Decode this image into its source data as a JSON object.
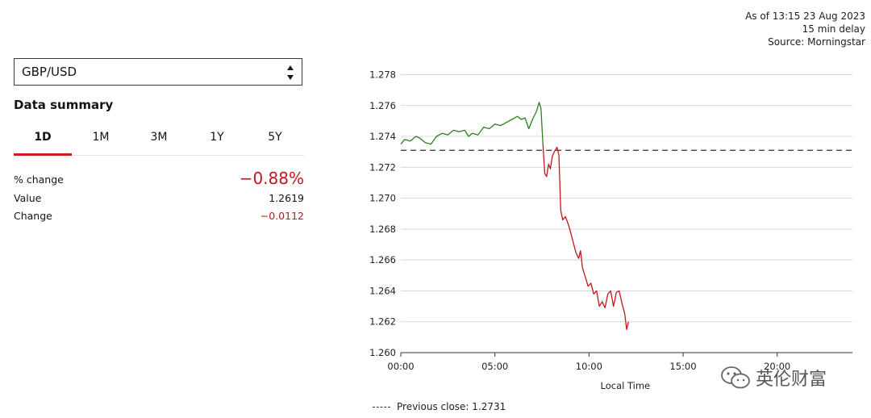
{
  "meta": {
    "as_of": "As of 13:15 23 Aug 2023",
    "delay": "15 min delay",
    "source": "Source: Morningstar"
  },
  "selector": {
    "value": "GBP/USD"
  },
  "summary": {
    "title": "Data summary",
    "tabs": [
      {
        "label": "1D",
        "active": true
      },
      {
        "label": "1M",
        "active": false
      },
      {
        "label": "3M",
        "active": false
      },
      {
        "label": "1Y",
        "active": false
      },
      {
        "label": "5Y",
        "active": false
      }
    ],
    "rows": [
      {
        "label": "% change",
        "value": "−0.88%"
      },
      {
        "label": "Value",
        "value": "1.2619"
      },
      {
        "label": "Change",
        "value": "−0.0112"
      }
    ]
  },
  "colors": {
    "up": "#2e7d1e",
    "down": "#c4161c",
    "accent": "#d11a1a"
  },
  "watermark": {
    "text": "英伦财富",
    "icon": "wechat-icon"
  },
  "chart_data": {
    "type": "line",
    "xlabel": "Local Time",
    "ylabel": "",
    "x_ticks": [
      "00:00",
      "05:00",
      "10:00",
      "15:00",
      "20:00"
    ],
    "x_range_hours": [
      0,
      24
    ],
    "y_ticks": [
      "1.278",
      "1.276",
      "1.274",
      "1.272",
      "1.270",
      "1.268",
      "1.266",
      "1.264",
      "1.262",
      "1.260"
    ],
    "ylim": [
      1.26,
      1.2786
    ],
    "grid": true,
    "previous_close": 1.2731,
    "legend": "Previous close: 1.2731",
    "series": [
      {
        "color": "#2e7d1e",
        "points": [
          [
            0.0,
            1.2735
          ],
          [
            0.2,
            1.2738
          ],
          [
            0.5,
            1.2737
          ],
          [
            0.8,
            1.274
          ],
          [
            1.0,
            1.2739
          ],
          [
            1.3,
            1.2736
          ],
          [
            1.6,
            1.2735
          ],
          [
            1.9,
            1.274
          ],
          [
            2.2,
            1.2742
          ],
          [
            2.5,
            1.2741
          ],
          [
            2.8,
            1.2744
          ],
          [
            3.1,
            1.2743
          ],
          [
            3.4,
            1.2744
          ],
          [
            3.6,
            1.274
          ],
          [
            3.8,
            1.2742
          ],
          [
            4.1,
            1.2741
          ],
          [
            4.4,
            1.2746
          ],
          [
            4.7,
            1.2745
          ],
          [
            5.0,
            1.2748
          ],
          [
            5.3,
            1.2747
          ],
          [
            5.6,
            1.2749
          ],
          [
            5.9,
            1.2751
          ],
          [
            6.2,
            1.2753
          ],
          [
            6.4,
            1.2751
          ],
          [
            6.6,
            1.2752
          ],
          [
            6.8,
            1.2745
          ],
          [
            7.0,
            1.2751
          ],
          [
            7.2,
            1.2756
          ],
          [
            7.35,
            1.2762
          ],
          [
            7.45,
            1.2758
          ],
          [
            7.55,
            1.2735
          ]
        ]
      },
      {
        "color": "#c4161c",
        "points": [
          [
            7.55,
            1.2735
          ],
          [
            7.65,
            1.2716
          ],
          [
            7.75,
            1.2714
          ],
          [
            7.85,
            1.2722
          ],
          [
            7.95,
            1.2719
          ],
          [
            8.05,
            1.2727
          ],
          [
            8.15,
            1.273
          ],
          [
            8.3,
            1.2733
          ],
          [
            8.4,
            1.2728
          ],
          [
            8.5,
            1.2692
          ],
          [
            8.6,
            1.2686
          ],
          [
            8.75,
            1.2688
          ],
          [
            8.9,
            1.2683
          ],
          [
            9.0,
            1.2679
          ],
          [
            9.15,
            1.2672
          ],
          [
            9.3,
            1.2665
          ],
          [
            9.45,
            1.2661
          ],
          [
            9.55,
            1.2666
          ],
          [
            9.65,
            1.2655
          ],
          [
            9.8,
            1.2649
          ],
          [
            9.95,
            1.2643
          ],
          [
            10.1,
            1.2645
          ],
          [
            10.25,
            1.2638
          ],
          [
            10.4,
            1.264
          ],
          [
            10.55,
            1.263
          ],
          [
            10.7,
            1.2633
          ],
          [
            10.85,
            1.2629
          ],
          [
            11.0,
            1.2638
          ],
          [
            11.15,
            1.264
          ],
          [
            11.3,
            1.263
          ],
          [
            11.45,
            1.2639
          ],
          [
            11.6,
            1.264
          ],
          [
            11.75,
            1.2632
          ],
          [
            11.9,
            1.2625
          ],
          [
            12.0,
            1.2615
          ],
          [
            12.1,
            1.262
          ]
        ]
      }
    ]
  }
}
